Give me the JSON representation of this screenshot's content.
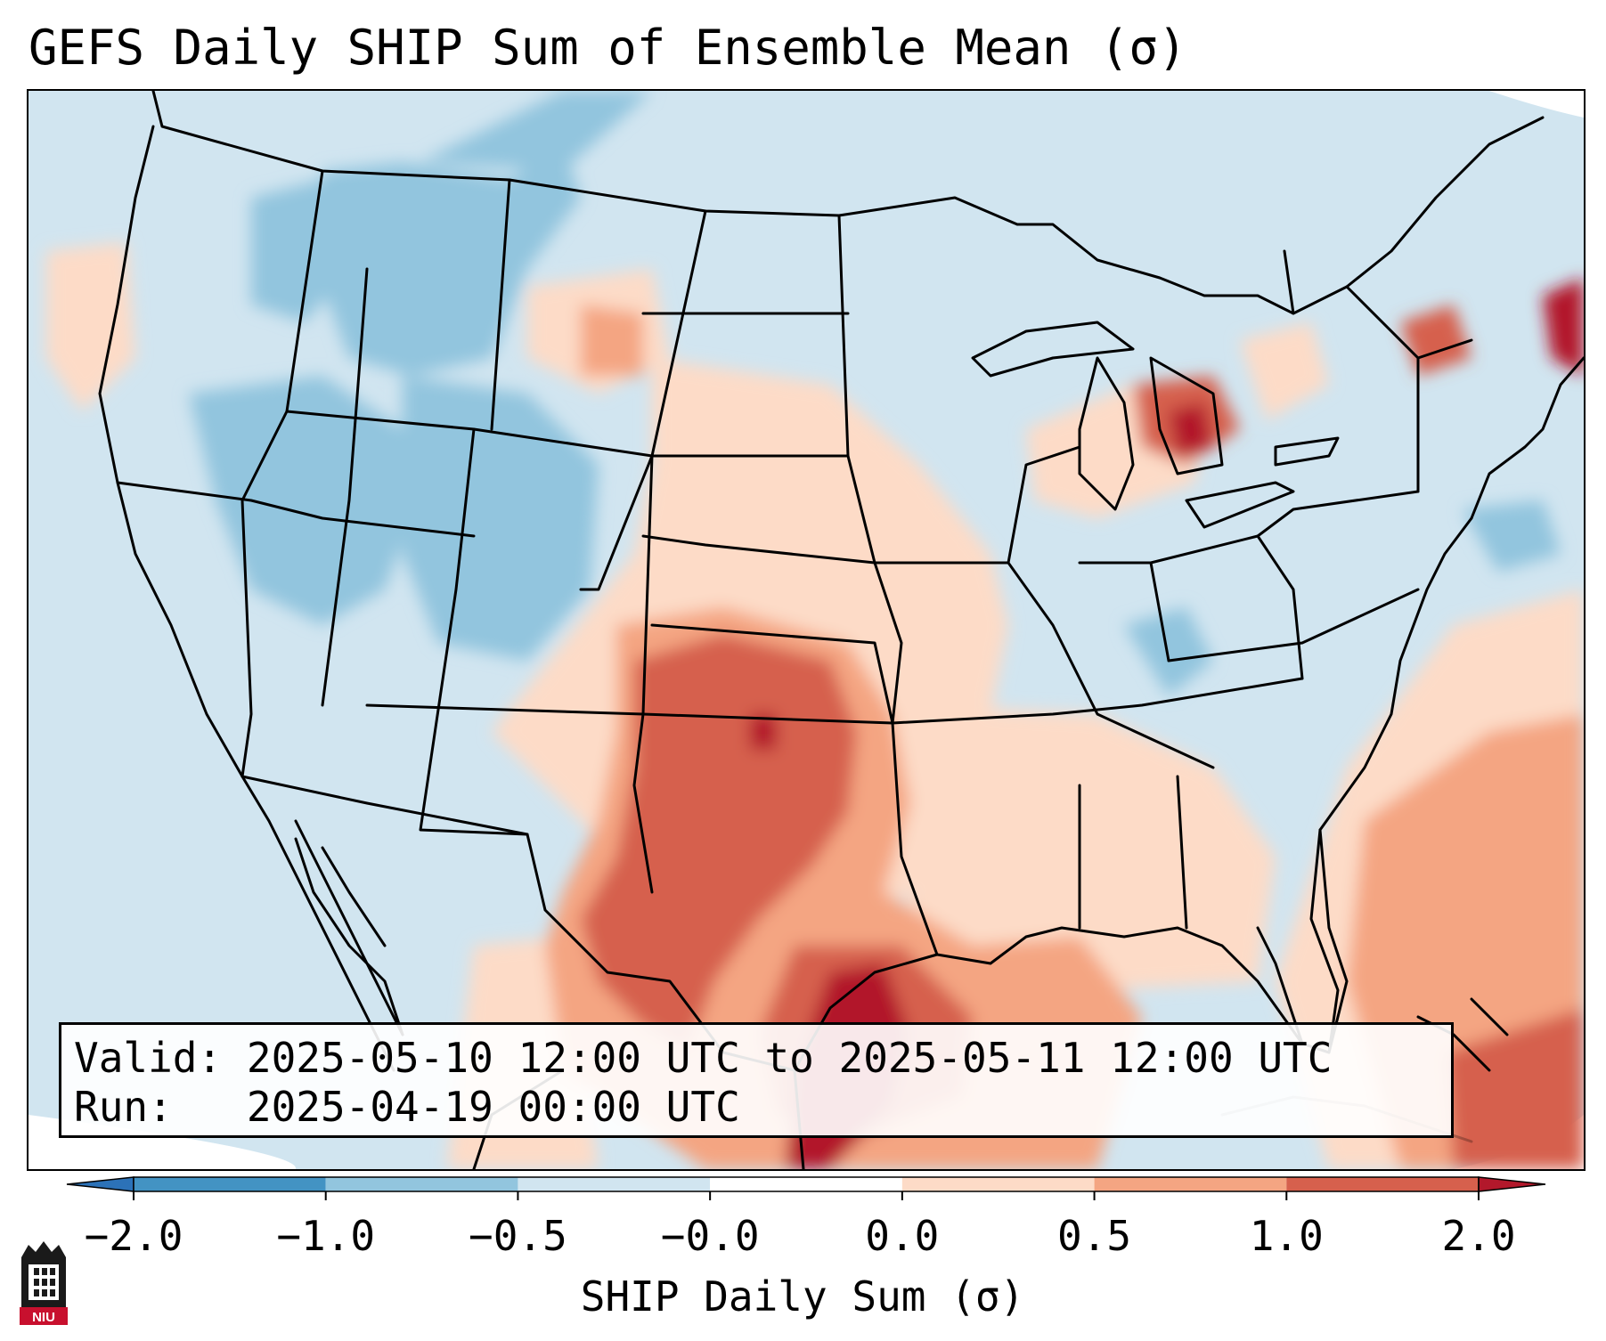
{
  "title": "GEFS Daily SHIP Sum of Ensemble Mean (σ)",
  "info": {
    "valid_label": "Valid:",
    "valid_value": "2025-05-10 12:00 UTC to 2025-05-11 12:00 UTC",
    "run_label": "Run:",
    "run_value": "2025-04-19 00:00 UTC"
  },
  "colorbar": {
    "label": "SHIP Daily Sum (σ)",
    "ticks": [
      "−2.0",
      "−1.0",
      "−0.5",
      "−0.0",
      "0.0",
      "0.5",
      "1.0",
      "2.0"
    ],
    "bins": [
      {
        "range": "< -2.0",
        "color": "#2c72b8"
      },
      {
        "range": "-2.0 to -1.0",
        "color": "#4393c3"
      },
      {
        "range": "-1.0 to -0.5",
        "color": "#92c5de"
      },
      {
        "range": "-0.5 to -0.0",
        "color": "#d1e5f0"
      },
      {
        "range": "-0.0 to 0.0",
        "color": "#ffffff"
      },
      {
        "range": "0.0 to 0.5",
        "color": "#fddbc7"
      },
      {
        "range": "0.5 to 1.0",
        "color": "#f4a582"
      },
      {
        "range": "1.0 to 2.0",
        "color": "#d6604d"
      },
      {
        "range": "> 2.0",
        "color": "#b2182b"
      }
    ],
    "extend": "both"
  },
  "map": {
    "projection": "Lambert Conformal, CONUS",
    "background_color": "#d1e5f0",
    "features": [
      "state boundaries",
      "national boundaries",
      "coastlines"
    ],
    "highlights": [
      {
        "region": "Texas / Oklahoma / Gulf coast",
        "level": "1.0 to 2.0+"
      },
      {
        "region": "Central Plains / Southeast",
        "level": "0.0 to 1.0"
      },
      {
        "region": "Northern Michigan",
        "level": "1.0 to 2.0"
      },
      {
        "region": "Intermountain West",
        "level": "-1.0 to -0.5"
      },
      {
        "region": "Western Atlantic",
        "level": "0.5 to 1.0"
      }
    ]
  },
  "logo": {
    "text": "NIU",
    "color": "#c8102e"
  }
}
